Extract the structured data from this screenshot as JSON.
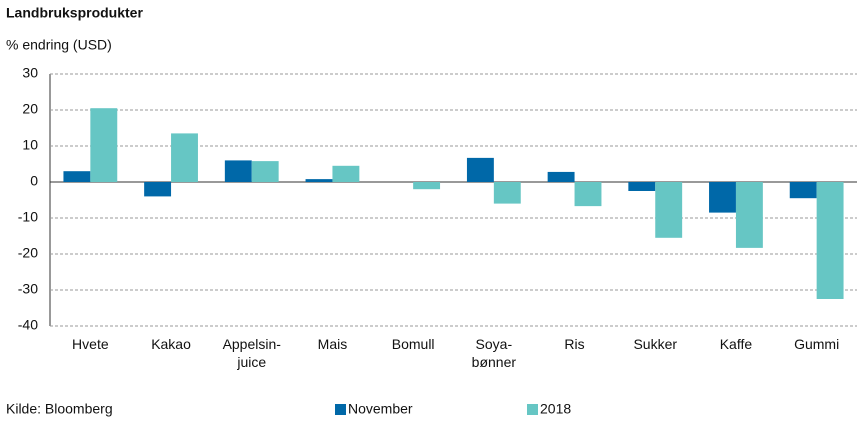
{
  "chart_data": {
    "type": "bar",
    "title": "Landbruksprodukter",
    "y_label": "% endring (USD)",
    "source": "Kilde: Bloomberg",
    "categories": [
      "Hvete",
      "Kakao",
      "Appelsin-\njuice",
      "Mais",
      "Bomull",
      "Soya-\nbønner",
      "Ris",
      "Sukker",
      "Kaffe",
      "Gummi"
    ],
    "series": [
      {
        "name": "November",
        "color": "#0068a8",
        "values": [
          3,
          -4,
          6,
          0.8,
          0,
          6.7,
          2.8,
          -2.5,
          -8.5,
          -4.5
        ]
      },
      {
        "name": "2018",
        "color": "#66c6c4",
        "values": [
          20.5,
          13.5,
          5.8,
          4.5,
          -2,
          -6,
          -6.7,
          -15.5,
          -18.3,
          -32.5
        ]
      }
    ],
    "ylim": [
      -40,
      30
    ],
    "yticks": [
      -40,
      -30,
      -20,
      -10,
      0,
      10,
      20,
      30
    ],
    "grid": true
  }
}
